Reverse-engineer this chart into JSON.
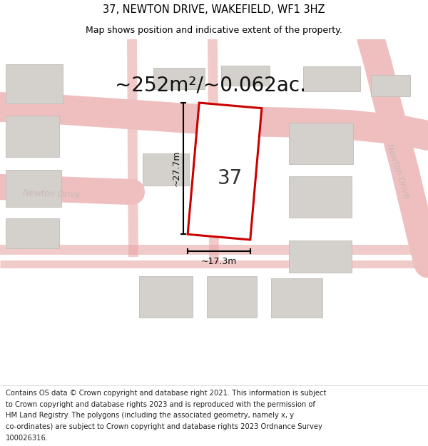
{
  "title_line1": "37, NEWTON DRIVE, WAKEFIELD, WF1 3HZ",
  "title_line2": "Map shows position and indicative extent of the property.",
  "area_text": "~252m²/~0.062ac.",
  "label_37": "37",
  "dim_height": "~27.7m",
  "dim_width": "~17.3m",
  "street_label_left": "Newton Drive",
  "street_label_top": "Newton Drive",
  "street_label_right": "Newton Drive",
  "footer_lines": [
    "Contains OS data © Crown copyright and database right 2021. This information is subject",
    "to Crown copyright and database rights 2023 and is reproduced with the permission of",
    "HM Land Registry. The polygons (including the associated geometry, namely x, y",
    "co-ordinates) are subject to Crown copyright and database rights 2023 Ordnance Survey",
    "100026316."
  ],
  "map_bg": "#eeece8",
  "road_fill": "#f2c8c8",
  "road_edge": "#e8a8a8",
  "building_color": "#d4d0cc",
  "building_edge": "#c0bcb8",
  "plot_outline_color": "#cc0000",
  "plot_fill_color": "#ffffff",
  "street_color": "#c8b8b8",
  "title_fontsize": 10.5,
  "subtitle_fontsize": 9,
  "area_fontsize": 20,
  "label_fontsize": 20,
  "dim_fontsize": 9,
  "footer_fontsize": 7.2,
  "street_fontsize": 8.5
}
